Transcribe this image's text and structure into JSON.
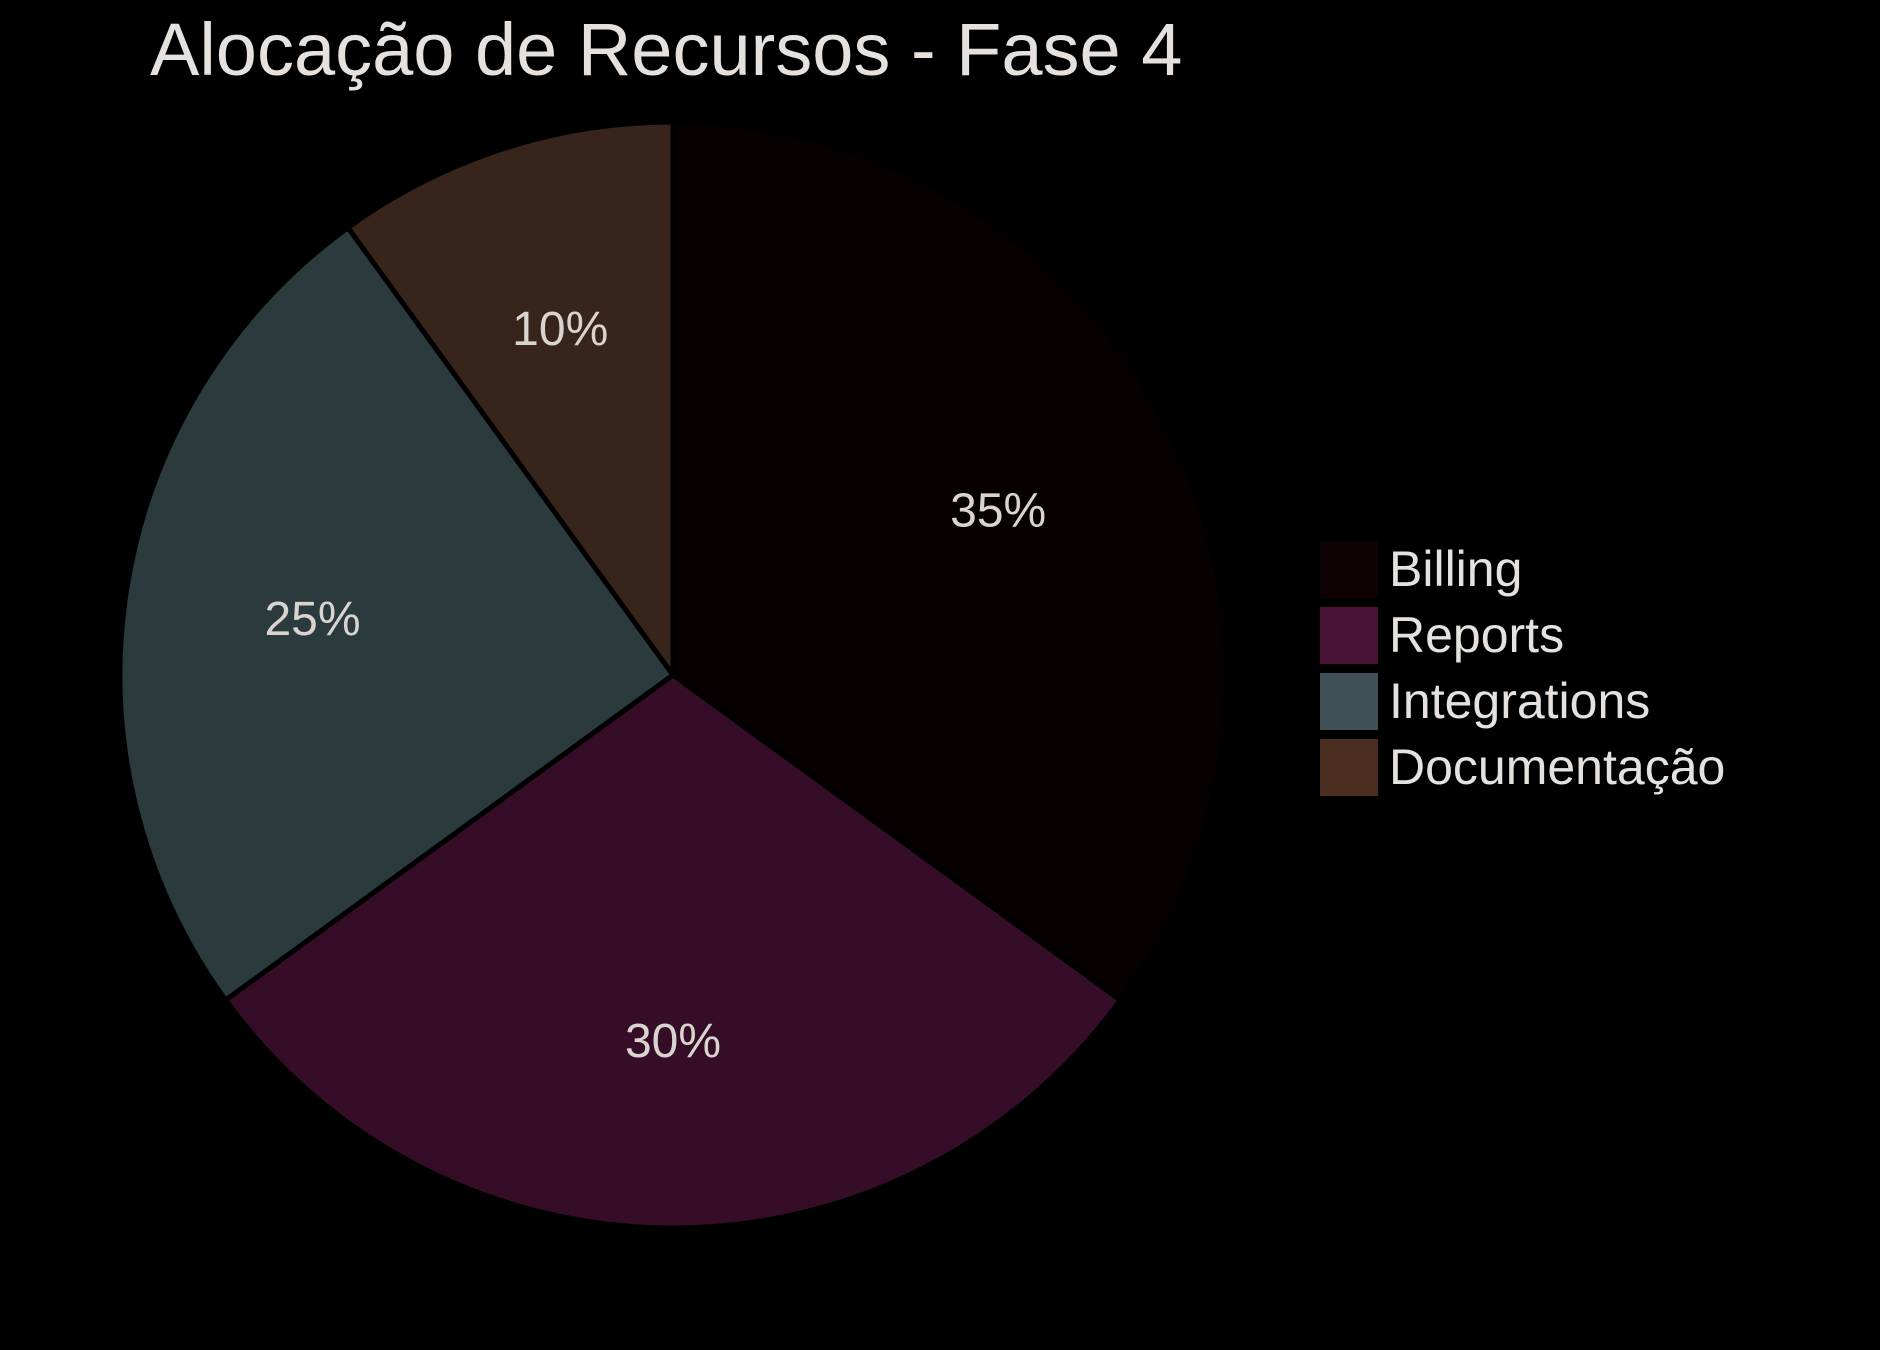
{
  "chart_data": {
    "type": "pie",
    "title": "Alocação de Recursos - Fase 4",
    "categories": [
      "Billing",
      "Reports",
      "Integrations",
      "Documentação"
    ],
    "values": [
      35,
      30,
      25,
      10
    ],
    "labels": [
      "35%",
      "30%",
      "25%",
      "10%"
    ],
    "colors": [
      "#060000",
      "#360d26",
      "#2b3a3d",
      "#37241a"
    ],
    "legend_colors": [
      "#0d0304",
      "#4a1236",
      "#3f5156",
      "#4b2e1f"
    ],
    "start_angle": "12 o'clock",
    "direction": "clockwise",
    "legend_position": "right"
  }
}
